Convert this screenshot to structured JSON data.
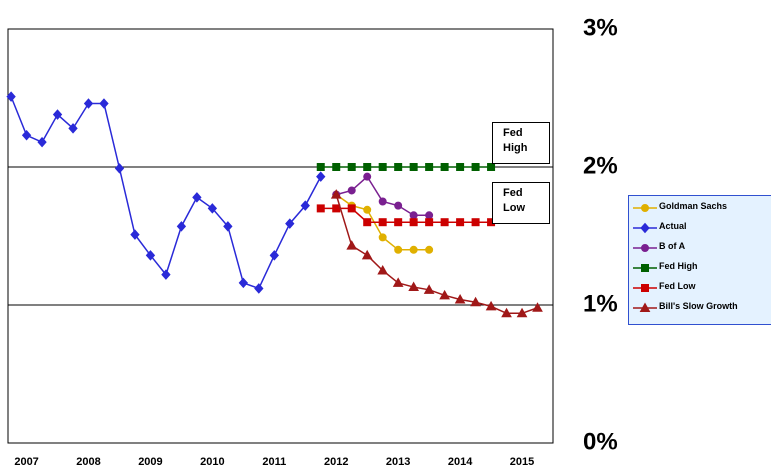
{
  "chart_data": {
    "type": "line",
    "xlim": [
      2007.2,
      2016.0
    ],
    "xticks": [
      {
        "value": 2007.5,
        "label": "2007"
      },
      {
        "value": 2008.5,
        "label": "2008"
      },
      {
        "value": 2009.5,
        "label": "2009"
      },
      {
        "value": 2010.5,
        "label": "2010"
      },
      {
        "value": 2011.5,
        "label": "2011"
      },
      {
        "value": 2012.5,
        "label": "2012"
      },
      {
        "value": 2013.5,
        "label": "2013"
      },
      {
        "value": 2014.5,
        "label": "2014"
      },
      {
        "value": 2015.5,
        "label": "2015"
      }
    ],
    "ylim": [
      0,
      3
    ],
    "yticks": [
      {
        "value": 0,
        "label": "0%"
      },
      {
        "value": 1,
        "label": "1%"
      },
      {
        "value": 2,
        "label": "2%"
      },
      {
        "value": 3,
        "label": "3%"
      }
    ],
    "grid": true,
    "annotations": [
      "Fed High",
      "Fed Low"
    ],
    "series": [
      {
        "name": "Goldman Sachs",
        "color": "#e0b000",
        "marker": "circle",
        "x": [
          2012.5,
          2012.75,
          2013.0,
          2013.25,
          2013.5,
          2013.75,
          2014.0
        ],
        "values": [
          1.8,
          1.72,
          1.69,
          1.49,
          1.4,
          1.4,
          1.4
        ]
      },
      {
        "name": "Actual",
        "color": "#2a2ad8",
        "marker": "diamond",
        "x": [
          2007.25,
          2007.5,
          2007.75,
          2008.0,
          2008.25,
          2008.5,
          2008.75,
          2009.0,
          2009.25,
          2009.5,
          2009.75,
          2010.0,
          2010.25,
          2010.5,
          2010.75,
          2011.0,
          2011.25,
          2011.5,
          2011.75,
          2012.0,
          2012.25
        ],
        "values": [
          2.51,
          2.23,
          2.18,
          2.38,
          2.28,
          2.46,
          2.46,
          1.99,
          1.51,
          1.36,
          1.22,
          1.57,
          1.78,
          1.7,
          1.57,
          1.16,
          1.12,
          1.36,
          1.59,
          1.72,
          1.93
        ]
      },
      {
        "name": "B of A",
        "color": "#7a2090",
        "marker": "circle",
        "x": [
          2012.5,
          2012.75,
          2013.0,
          2013.25,
          2013.5,
          2013.75,
          2014.0
        ],
        "values": [
          1.8,
          1.83,
          1.93,
          1.75,
          1.72,
          1.65,
          1.65
        ]
      },
      {
        "name": "Fed High",
        "color": "#006000",
        "marker": "square",
        "x": [
          2012.25,
          2012.5,
          2012.75,
          2013.0,
          2013.25,
          2013.5,
          2013.75,
          2014.0,
          2014.25,
          2014.5,
          2014.75,
          2015.0
        ],
        "values": [
          2,
          2,
          2,
          2,
          2,
          2,
          2,
          2,
          2,
          2,
          2,
          2
        ]
      },
      {
        "name": "Fed Low",
        "color": "#cc0000",
        "marker": "square",
        "x": [
          2012.25,
          2012.5,
          2012.75,
          2013.0,
          2013.25,
          2013.5,
          2013.75,
          2014.0,
          2014.25,
          2014.5,
          2014.75,
          2015.0
        ],
        "values": [
          1.7,
          1.7,
          1.7,
          1.6,
          1.6,
          1.6,
          1.6,
          1.6,
          1.6,
          1.6,
          1.6,
          1.6
        ]
      },
      {
        "name": "Bill's Slow Growth",
        "color": "#a01818",
        "marker": "triangle",
        "x": [
          2012.5,
          2012.75,
          2013.0,
          2013.25,
          2013.5,
          2013.75,
          2014.0,
          2014.25,
          2014.5,
          2014.75,
          2015.0,
          2015.25,
          2015.5,
          2015.75
        ],
        "values": [
          1.8,
          1.43,
          1.36,
          1.25,
          1.16,
          1.13,
          1.11,
          1.07,
          1.04,
          1.02,
          0.99,
          0.94,
          0.94,
          0.98
        ]
      }
    ]
  }
}
